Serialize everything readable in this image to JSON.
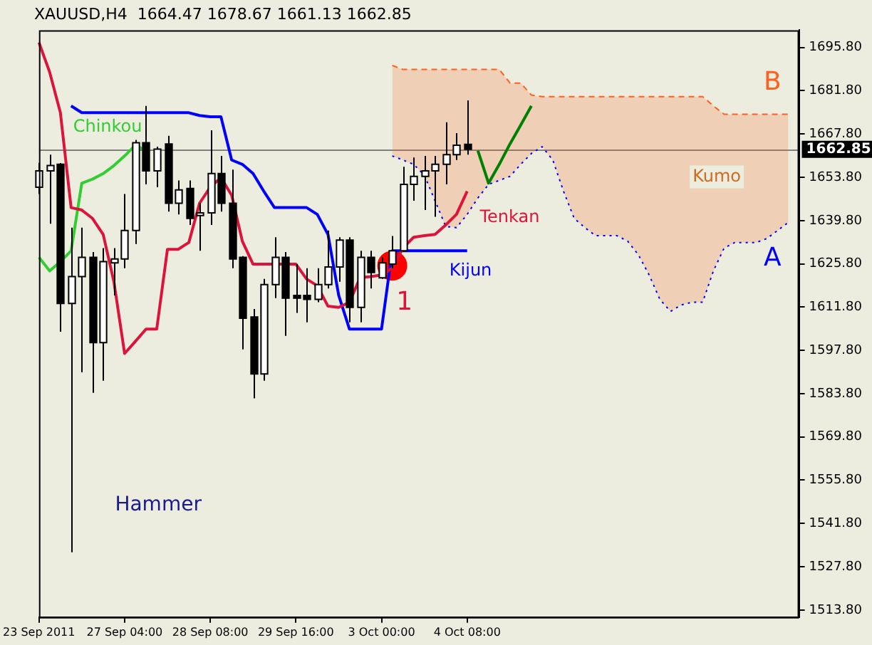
{
  "chart_data": {
    "type": "candlestick",
    "title": "XAUUSD,H4  1664.47 1678.67 1661.13 1662.85",
    "categories": [
      "23 Sep 2011",
      null,
      null,
      null,
      null,
      null,
      null,
      null,
      "27 Sep 04:00",
      null,
      null,
      null,
      null,
      null,
      null,
      null,
      "28 Sep 08:00",
      null,
      null,
      null,
      null,
      null,
      null,
      null,
      "29 Sep 16:00",
      null,
      null,
      null,
      null,
      null,
      null,
      null,
      "3 Oct 00:00",
      null,
      null,
      null,
      null,
      null,
      null,
      null,
      "4 Oct 08:00",
      null,
      null,
      null,
      null,
      null,
      null,
      null,
      null,
      null,
      null,
      null,
      null,
      null,
      null,
      null,
      null,
      null,
      null,
      null,
      null,
      null,
      null,
      null,
      null,
      null,
      null,
      null,
      null,
      null,
      null,
      null
    ],
    "ohlc": [
      [
        1650.6,
        1658.5,
        1648.4,
        1655.9
      ],
      [
        1655.9,
        1661.1,
        1638.8,
        1657.6
      ],
      [
        1658.0,
        1658.4,
        1603.8,
        1613.0
      ],
      [
        1613.0,
        1637.5,
        1532.5,
        1621.7
      ],
      [
        1621.7,
        1637.5,
        1590.7,
        1627.9
      ],
      [
        1627.9,
        1629.6,
        1584.1,
        1600.3
      ],
      [
        1600.3,
        1630.9,
        1588.0,
        1626.5
      ],
      [
        1626.1,
        1630.9,
        1615.6,
        1627.4
      ],
      [
        1627.4,
        1648.4,
        1624.4,
        1636.6
      ],
      [
        1636.6,
        1665.9,
        1632.2,
        1665.0
      ],
      [
        1665.0,
        1676.9,
        1651.5,
        1655.9
      ],
      [
        1655.9,
        1663.7,
        1650.6,
        1662.9
      ],
      [
        1664.6,
        1667.2,
        1642.7,
        1645.4
      ],
      [
        1645.4,
        1652.8,
        1641.8,
        1649.7
      ],
      [
        1650.2,
        1652.8,
        1638.4,
        1640.5
      ],
      [
        1641.4,
        1645.4,
        1630.0,
        1642.3
      ],
      [
        1642.3,
        1669.0,
        1638.4,
        1655.0
      ],
      [
        1655.0,
        1660.7,
        1642.7,
        1645.4
      ],
      [
        1645.4,
        1656.3,
        1624.4,
        1627.4
      ],
      [
        1627.9,
        1628.3,
        1598.1,
        1608.2
      ],
      [
        1608.6,
        1611.2,
        1582.3,
        1590.2
      ],
      [
        1590.2,
        1620.9,
        1588.0,
        1619.1
      ],
      [
        1619.1,
        1634.4,
        1614.7,
        1627.9
      ],
      [
        1627.9,
        1629.6,
        1602.5,
        1614.7
      ],
      [
        1615.6,
        1625.7,
        1609.9,
        1614.7
      ],
      [
        1615.6,
        1624.4,
        1606.9,
        1614.3
      ],
      [
        1614.3,
        1624.4,
        1613.4,
        1619.1
      ],
      [
        1619.1,
        1636.6,
        1617.8,
        1624.8
      ],
      [
        1624.8,
        1634.4,
        1620.0,
        1633.5
      ],
      [
        1633.5,
        1634.4,
        1606.9,
        1611.7
      ],
      [
        1611.7,
        1630.0,
        1606.9,
        1627.9
      ],
      [
        1627.9,
        1630.0,
        1617.8,
        1623.0
      ],
      [
        1621.3,
        1627.9,
        1620.9,
        1626.1
      ],
      [
        1625.7,
        1634.8,
        1624.4,
        1630.0
      ],
      [
        1630.0,
        1657.2,
        1629.6,
        1651.5
      ],
      [
        1651.5,
        1660.2,
        1646.2,
        1654.1
      ],
      [
        1654.1,
        1660.7,
        1643.2,
        1655.9
      ],
      [
        1655.9,
        1660.7,
        1641.0,
        1658.0
      ],
      [
        1658.0,
        1671.6,
        1651.5,
        1661.1
      ],
      [
        1661.1,
        1668.1,
        1659.4,
        1664.2
      ],
      [
        1664.47,
        1678.67,
        1661.13,
        1662.85
      ],
      null,
      null,
      null,
      null,
      null,
      null,
      null,
      null,
      null,
      null,
      null,
      null,
      null,
      null,
      null,
      null,
      null,
      null,
      null,
      null,
      null,
      null,
      null,
      null,
      null,
      null,
      null,
      null,
      null,
      null,
      null
    ],
    "series": [
      {
        "name": "Tenkan",
        "type": "line",
        "color": "#dc143c",
        "line_style": "solid",
        "values": [
          1697.4,
          1687.8,
          1674.7,
          1644.0,
          1643.2,
          1640.5,
          1635.3,
          1620.0,
          1596.8,
          1600.7,
          1604.7,
          1604.7,
          1630.5,
          1630.5,
          1632.7,
          1645.4,
          1650.6,
          1653.7,
          1648.0,
          1633.1,
          1625.7,
          1625.7,
          1625.7,
          1625.7,
          1625.7,
          1620.9,
          1618.7,
          1612.1,
          1611.7,
          1613.4,
          1621.3,
          1621.7,
          1622.2,
          1624.4,
          1630.9,
          1634.4,
          1634.9,
          1635.3,
          1638.4,
          1641.8,
          1649.3,
          null,
          null,
          null,
          null,
          null,
          null,
          null,
          null,
          null,
          null,
          null,
          null,
          null,
          null,
          null,
          null,
          null,
          null,
          null,
          null,
          null,
          null,
          null,
          null,
          null,
          null,
          null,
          null,
          null,
          null,
          null
        ]
      },
      {
        "name": "Kijun",
        "type": "line",
        "color": "#0000ff",
        "line_style": "solid",
        "values": [
          null,
          null,
          null,
          1676.9,
          1674.7,
          1674.7,
          1674.7,
          1674.7,
          1674.7,
          1674.7,
          1674.7,
          1674.7,
          1674.7,
          1674.7,
          1674.7,
          1673.8,
          1673.4,
          1673.4,
          1659.4,
          1658.0,
          1655.0,
          1649.3,
          1644.0,
          1644.0,
          1644.0,
          1644.0,
          1641.8,
          1635.3,
          1615.6,
          1604.7,
          1604.7,
          1604.7,
          1604.7,
          1630.0,
          1630.0,
          1630.0,
          1630.0,
          1630.0,
          1630.0,
          1630.0,
          1630.0,
          null,
          null,
          null,
          null,
          null,
          null,
          null,
          null,
          null,
          null,
          null,
          null,
          null,
          null,
          null,
          null,
          null,
          null,
          null,
          null,
          null,
          null,
          null,
          null,
          null,
          null,
          null,
          null,
          null,
          null,
          null
        ]
      },
      {
        "name": "Chinkou",
        "type": "line",
        "color": "#32cd32",
        "line_style": "solid",
        "values": [
          1627.9,
          1623.5,
          1626.5,
          1630.0,
          1651.9,
          1653.2,
          1655.0,
          1657.6,
          1660.7,
          1664.2,
          1662.4,
          null,
          null,
          null,
          null,
          null,
          null,
          null,
          null,
          null,
          null,
          null,
          null,
          null,
          null,
          null,
          null,
          null,
          null,
          null,
          null,
          null,
          null,
          null,
          null,
          null,
          null,
          null,
          null,
          null,
          null,
          null,
          null,
          null,
          null,
          null,
          null,
          null,
          null,
          null,
          null,
          null,
          null,
          null,
          null,
          null,
          null,
          null,
          null,
          null,
          null,
          null,
          null,
          null,
          null,
          null,
          null,
          null,
          null,
          null,
          null,
          null
        ]
      },
      {
        "name": "A",
        "type": "line",
        "color": "#0000ff",
        "line_style": "dotted",
        "values": [
          null,
          null,
          null,
          null,
          null,
          null,
          null,
          null,
          null,
          null,
          null,
          null,
          null,
          null,
          null,
          null,
          null,
          null,
          null,
          null,
          null,
          null,
          null,
          null,
          null,
          null,
          null,
          null,
          null,
          null,
          null,
          null,
          null,
          1660.7,
          1659.4,
          1658.0,
          1654.5,
          1646.2,
          1637.9,
          1637.5,
          1641.8,
          1647.1,
          1651.5,
          1652.8,
          1654.1,
          1658.0,
          1661.5,
          1663.7,
          1659.4,
          1649.3,
          1640.5,
          1637.5,
          1634.9,
          1634.9,
          1634.9,
          1633.1,
          1628.7,
          1622.2,
          1614.3,
          1610.4,
          1612.5,
          1613.4,
          1613.4,
          1623.5,
          1630.9,
          1632.7,
          1632.7,
          1632.7,
          1634.0,
          1636.6,
          1639.2,
          null
        ]
      },
      {
        "name": "B",
        "type": "area",
        "color": "#ff6020",
        "line_style": "dashed",
        "values": [
          null,
          null,
          null,
          null,
          null,
          null,
          null,
          null,
          null,
          null,
          null,
          null,
          null,
          null,
          null,
          null,
          null,
          null,
          null,
          null,
          null,
          null,
          null,
          null,
          null,
          null,
          null,
          null,
          null,
          null,
          null,
          null,
          null,
          1690.0,
          1688.7,
          1688.7,
          1688.7,
          1688.7,
          1688.7,
          1688.7,
          1688.7,
          1688.7,
          1688.7,
          1688.7,
          1684.3,
          1684.3,
          1680.4,
          1679.9,
          1679.9,
          1679.9,
          1679.9,
          1679.9,
          1679.9,
          1679.9,
          1679.9,
          1679.9,
          1679.9,
          1679.9,
          1679.9,
          1679.9,
          1679.9,
          1679.9,
          1679.9,
          1676.9,
          1674.2,
          1674.2,
          1674.2,
          1674.2,
          1674.2,
          1674.2,
          1674.2,
          null
        ]
      },
      {
        "type": "line",
        "color": "#008000",
        "line_style": "solid",
        "values": [
          null,
          null,
          null,
          null,
          null,
          null,
          null,
          null,
          null,
          null,
          null,
          null,
          null,
          null,
          null,
          null,
          null,
          null,
          null,
          null,
          null,
          null,
          null,
          null,
          null,
          null,
          null,
          null,
          null,
          null,
          null,
          null,
          null,
          null,
          null,
          null,
          null,
          null,
          null,
          null,
          null,
          1662.4,
          1651.9,
          1658.0,
          1664.6,
          1670.7,
          1676.9,
          null,
          null,
          null,
          null,
          null,
          null,
          null,
          null,
          null,
          null,
          null,
          null,
          null,
          null,
          null,
          null,
          null,
          null,
          null,
          null,
          null,
          null,
          null,
          null,
          null
        ]
      },
      {
        "type": "scatter",
        "color": "#ff0000",
        "marker": "circle",
        "values": [
          null,
          null,
          null,
          null,
          null,
          null,
          null,
          null,
          null,
          null,
          null,
          null,
          null,
          null,
          null,
          null,
          null,
          null,
          null,
          null,
          null,
          null,
          null,
          null,
          null,
          null,
          null,
          null,
          null,
          null,
          null,
          null,
          null,
          1625.2,
          null,
          null,
          null,
          null,
          null,
          null,
          null,
          null,
          null,
          null,
          null,
          null,
          null,
          null,
          null,
          null,
          null,
          null,
          null,
          null,
          null,
          null,
          null,
          null,
          null,
          null,
          null,
          null,
          null,
          null,
          null,
          null,
          null,
          null,
          null,
          null,
          null,
          null
        ]
      }
    ],
    "ylim": [
      1511.5,
      1701.4
    ],
    "yticks": [
      {
        "value": 1695.8,
        "label": "1695.80"
      },
      {
        "value": 1681.8,
        "label": "1681.80"
      },
      {
        "value": 1667.8,
        "label": "1667.80"
      },
      {
        "value": 1653.8,
        "label": "1653.80"
      },
      {
        "value": 1639.8,
        "label": "1639.80"
      },
      {
        "value": 1625.8,
        "label": "1625.80"
      },
      {
        "value": 1611.8,
        "label": "1611.80"
      },
      {
        "value": 1597.8,
        "label": "1597.80"
      },
      {
        "value": 1583.8,
        "label": "1583.80"
      },
      {
        "value": 1569.8,
        "label": "1569.80"
      },
      {
        "value": 1555.8,
        "label": "1555.80"
      },
      {
        "value": 1541.8,
        "label": "1541.80"
      },
      {
        "value": 1527.8,
        "label": "1527.80"
      },
      {
        "value": 1513.8,
        "label": "1513.80"
      }
    ],
    "ref_lines": [
      {
        "axis": "y",
        "value": 1662.85,
        "label": "1662.85",
        "color": "#808080"
      }
    ],
    "annotations": [
      "Kumo",
      "Hammer",
      "1"
    ]
  }
}
